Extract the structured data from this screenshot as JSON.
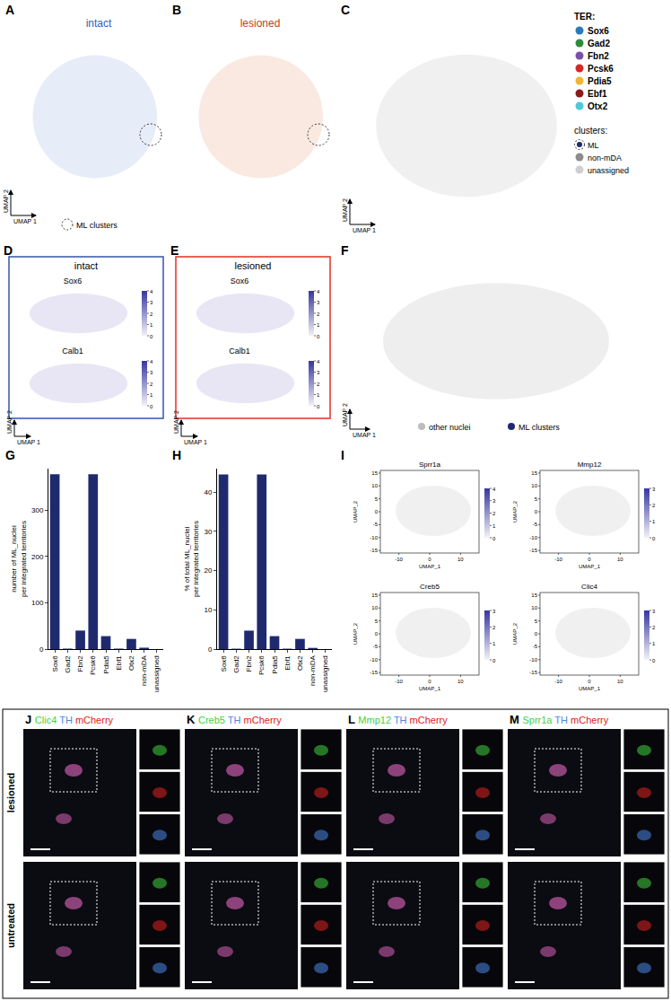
{
  "chart_data": [
    {
      "type": "bar",
      "title": "G",
      "y_label": "number of ML_nuclei per integrated territories",
      "categories": [
        "Sox6",
        "Gad2",
        "Fbn2",
        "Pcsk6",
        "Pdia5",
        "Ebf1",
        "Otx2",
        "non-mDA",
        "unassigned"
      ],
      "values": [
        378,
        1,
        40,
        378,
        28,
        1,
        22,
        3,
        0
      ],
      "color": "#1f2a6e",
      "ylim": [
        0,
        390
      ],
      "yticks": [
        0,
        100,
        200,
        300
      ],
      "grid": false
    },
    {
      "type": "bar",
      "title": "H",
      "y_label": "% of total ML_nuclei per integrated territories",
      "categories": [
        "Sox6",
        "Gad2",
        "Fbn2",
        "Pcsk6",
        "Pdia5",
        "Ebf1",
        "Otx2",
        "non-mDA",
        "unassigned"
      ],
      "values": [
        44.5,
        0.1,
        4.7,
        44.5,
        3.3,
        0.1,
        2.6,
        0.3,
        0
      ],
      "color": "#1f2a6e",
      "ylim": [
        0,
        46
      ],
      "yticks": [
        0,
        10,
        20,
        30,
        40
      ],
      "grid": false
    }
  ],
  "umap": {
    "axis_labels": [
      "UMAP 1",
      "UMAP 2"
    ],
    "A": {
      "label": "A",
      "title": "intact",
      "color": "#2f5fb3",
      "legend": "ML clusters"
    },
    "B": {
      "label": "B",
      "title": "lesioned",
      "color": "#b5461f"
    },
    "C": {
      "label": "C",
      "legend_title": "TER:",
      "territories": [
        {
          "name": "Sox6",
          "color": "#2a7ab8"
        },
        {
          "name": "Gad2",
          "color": "#2e8b3a"
        },
        {
          "name": "Fbn2",
          "color": "#7a4fa8"
        },
        {
          "name": "Pcsk6",
          "color": "#d62728"
        },
        {
          "name": "Pdia5",
          "color": "#f2b52e"
        },
        {
          "name": "Ebf1",
          "color": "#8b1a1a"
        },
        {
          "name": "Otx2",
          "color": "#4fc8d8"
        }
      ],
      "clusters_title": "clusters:",
      "clusters": [
        {
          "name": "ML",
          "color": "#1f2a6e"
        },
        {
          "name": "non-mDA",
          "color": "#8c8c8c"
        },
        {
          "name": "unassigned",
          "color": "#cfcfcf"
        }
      ]
    },
    "D": {
      "label": "D",
      "title": "intact",
      "color": "#3355aa",
      "genes": [
        "Sox6",
        "Calb1"
      ],
      "colorbar": {
        "range": [
          0,
          4
        ],
        "ticks": [
          0,
          1,
          2,
          3,
          4
        ]
      }
    },
    "E": {
      "label": "E",
      "title": "lesioned",
      "color": "#e03020",
      "genes": [
        "Sox6",
        "Calb1"
      ],
      "colorbar": {
        "range": [
          0,
          4
        ],
        "ticks": [
          0,
          1,
          2,
          3,
          4
        ]
      }
    },
    "F": {
      "label": "F",
      "legend": [
        {
          "name": "other nuclei",
          "color": "#bdbdbd"
        },
        {
          "name": "ML clusters",
          "color": "#1f2a6e"
        }
      ]
    }
  },
  "I": {
    "label": "I",
    "x_label": "UMAP_1",
    "y_label": "UMAP_2",
    "xlim": [
      -16,
      16
    ],
    "xticks": [
      -10,
      0,
      10
    ],
    "ylim": [
      -16,
      16
    ],
    "yticks": [
      -15,
      -10,
      -5,
      0,
      5,
      10,
      15
    ],
    "panels": [
      {
        "gene": "Sprr1a",
        "colorbar": {
          "range": [
            0,
            4
          ],
          "ticks": [
            0,
            1,
            2,
            3,
            4
          ]
        }
      },
      {
        "gene": "Mmp12",
        "colorbar": {
          "range": [
            0,
            3
          ],
          "ticks": [
            0,
            1,
            2,
            3
          ]
        }
      },
      {
        "gene": "Creb5",
        "colorbar": {
          "range": [
            0,
            3
          ],
          "ticks": [
            0,
            1,
            2,
            3
          ]
        }
      },
      {
        "gene": "Clic4",
        "colorbar": {
          "range": [
            0,
            3
          ],
          "ticks": [
            0,
            1,
            2,
            3
          ]
        }
      }
    ]
  },
  "microscopy": {
    "rows": [
      "lesioned",
      "untreated"
    ],
    "panels": [
      {
        "label": "J",
        "marker": "Clic4"
      },
      {
        "label": "K",
        "marker": "Creb5"
      },
      {
        "label": "L",
        "marker": "Mmp12"
      },
      {
        "label": "M",
        "marker": "Sprr1a"
      }
    ],
    "channels": [
      {
        "name": "TH",
        "color": "#4a86e8"
      },
      {
        "name": "mCherry",
        "color": "#e02020"
      }
    ],
    "marker_color": "#3fd23f"
  }
}
